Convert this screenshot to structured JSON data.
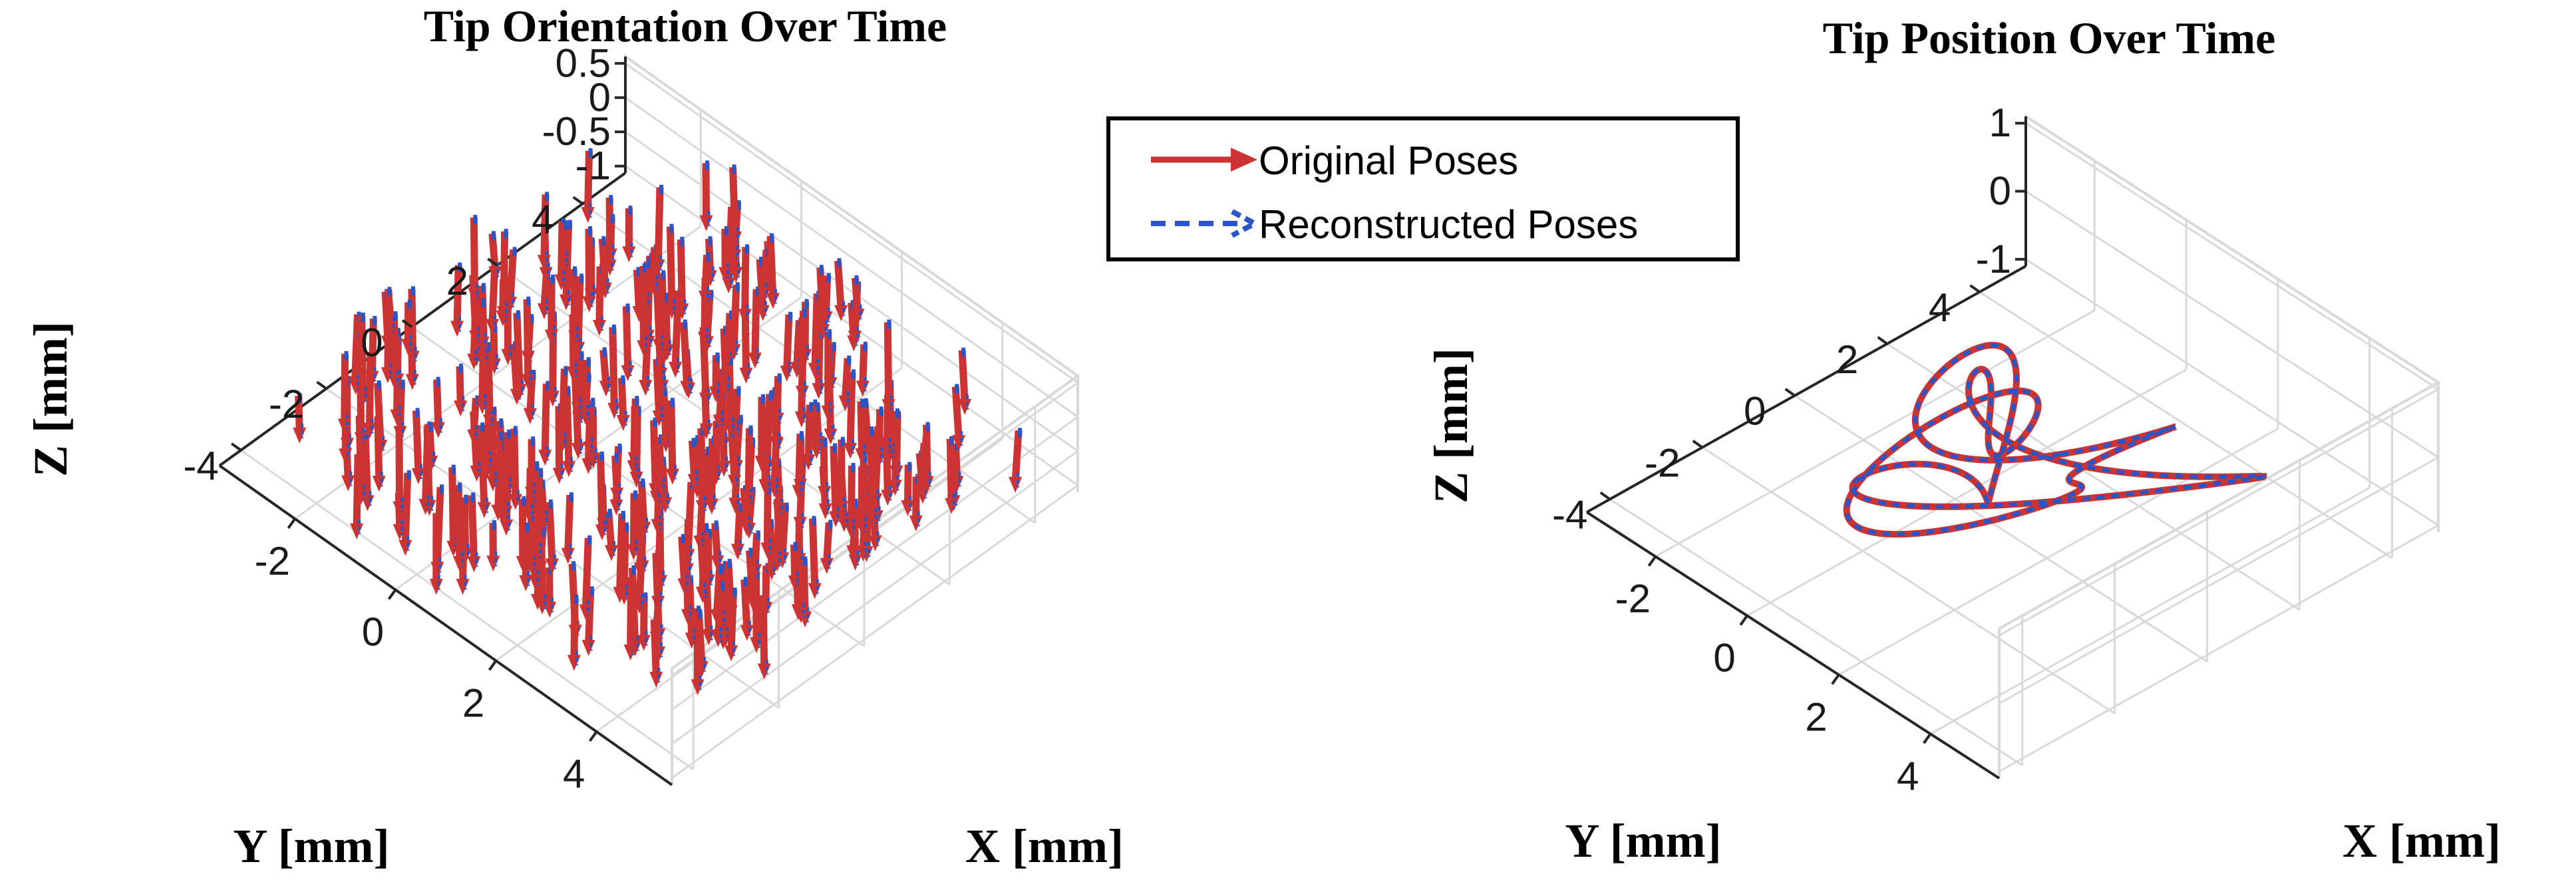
{
  "colors": {
    "original": "#cc3333",
    "reconstructed": "#2a55c8",
    "grid": "#d9d9d9",
    "axis": "#262626",
    "text": "#000000"
  },
  "legend": {
    "items": [
      {
        "label": "Original Poses",
        "style": "solid-arrow",
        "color": "#cc3333"
      },
      {
        "label": "Reconstructed Poses",
        "style": "dashed-arrow",
        "color": "#2a55c8"
      }
    ],
    "placement": "top-center"
  },
  "chart_data": [
    {
      "type": "quiver3d",
      "title": "Tip Orientation Over Time",
      "xlabel": "X [mm]",
      "ylabel": "Y [mm]",
      "zlabel": "Z [mm]",
      "x_ticks": [
        "-2",
        "0",
        "2",
        "4"
      ],
      "y_ticks": [
        "-4",
        "-2",
        "0",
        "2",
        "4"
      ],
      "z_ticks": [
        "0.5",
        "0",
        "-0.5",
        "-1"
      ],
      "xlim": [
        -3.5,
        5.5
      ],
      "ylim": [
        -4.5,
        5
      ],
      "zlim": [
        -1.1,
        0.6
      ],
      "grid": true,
      "series": [
        {
          "name": "Original Poses",
          "color": "#cc3333",
          "style": "solid"
        },
        {
          "name": "Reconstructed Poses",
          "color": "#2a55c8",
          "style": "dashed"
        }
      ]
    },
    {
      "type": "line3d",
      "title": "Tip Position Over Time",
      "xlabel": "X [mm]",
      "ylabel": "Y [mm]",
      "zlabel": "Z [mm]",
      "x_ticks": [
        "-2",
        "0",
        "2",
        "4"
      ],
      "y_ticks": [
        "-4",
        "-2",
        "0",
        "2",
        "4"
      ],
      "z_ticks": [
        "1",
        "0",
        "-1"
      ],
      "xlim": [
        -3.5,
        5.5
      ],
      "ylim": [
        -4.5,
        5
      ],
      "zlim": [
        -1.1,
        1.1
      ],
      "grid": true,
      "series": [
        {
          "name": "Original Poses",
          "color": "#cc3333",
          "style": "solid"
        },
        {
          "name": "Reconstructed Poses",
          "color": "#2a55c8",
          "style": "dashed"
        }
      ]
    }
  ]
}
